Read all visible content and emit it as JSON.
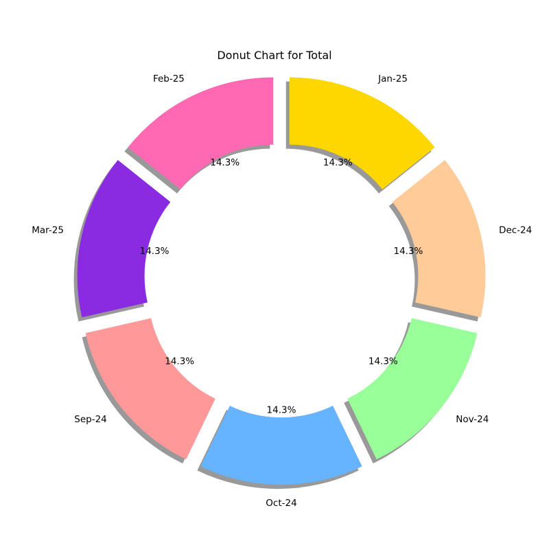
{
  "chart_data": {
    "type": "pie",
    "title": "Donut Chart for Total",
    "start_angle_deg": 90,
    "direction": "counterclockwise",
    "donut": true,
    "shadow": true,
    "explode": true,
    "slices": [
      {
        "label": "Feb-25",
        "value": 1,
        "pct_label": "14.3%",
        "color": "#FF69B4"
      },
      {
        "label": "Mar-25",
        "value": 1,
        "pct_label": "14.3%",
        "color": "#8A2BE2"
      },
      {
        "label": "Sep-24",
        "value": 1,
        "pct_label": "14.3%",
        "color": "#FF9999"
      },
      {
        "label": "Oct-24",
        "value": 1,
        "pct_label": "14.3%",
        "color": "#66B3FF"
      },
      {
        "label": "Nov-24",
        "value": 1,
        "pct_label": "14.3%",
        "color": "#99FF99"
      },
      {
        "label": "Dec-24",
        "value": 1,
        "pct_label": "14.3%",
        "color": "#FFCC99"
      },
      {
        "label": "Jan-25",
        "value": 1,
        "pct_label": "14.3%",
        "color": "#FFD700"
      }
    ]
  }
}
